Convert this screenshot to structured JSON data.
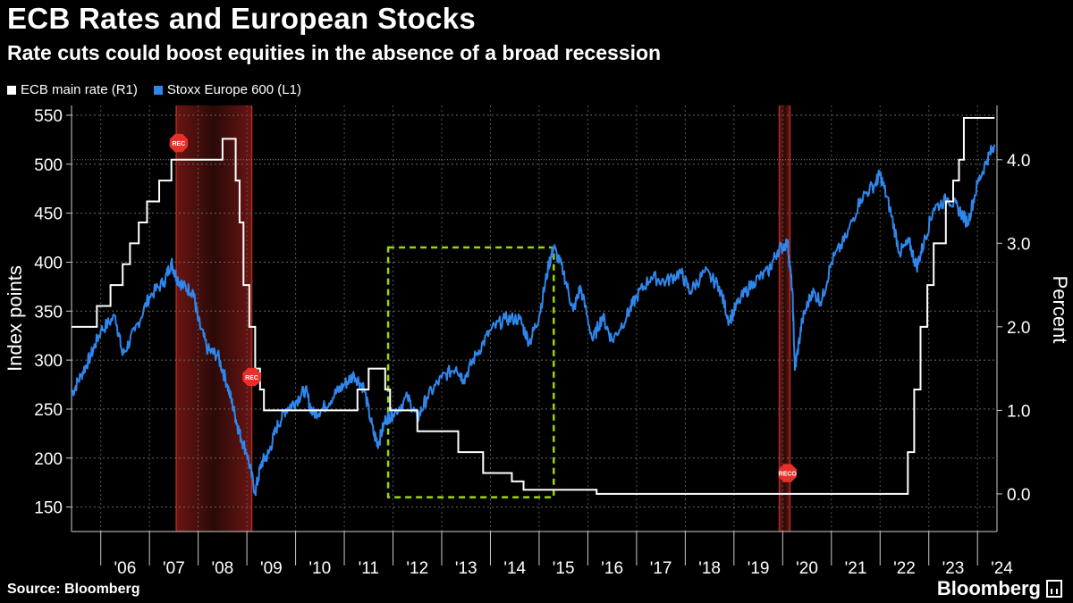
{
  "header": {
    "title": "ECB Rates and European Stocks",
    "subtitle": "Rate cuts could boost equities in the absence of a broad recession"
  },
  "footer": {
    "source": "Source: Bloomberg",
    "brand": "Bloomberg"
  },
  "colors": {
    "background": "#000000",
    "rate": "#ffffff",
    "stoxx": "#2f86ec",
    "recession": "#7a1b17",
    "highlight": "#9dd600",
    "rec_marker": "#e8302b"
  },
  "chart_data": {
    "type": "line",
    "title": "ECB Rates and European Stocks",
    "subtitle": "Rate cuts could boost equities in the absence of a broad recession",
    "legend": [
      {
        "name": "ECB main rate (R1)",
        "color": "#ffffff"
      },
      {
        "name": "Stoxx Europe 600 (L1)",
        "color": "#2f86ec"
      }
    ],
    "legend_position": "top-left",
    "grid": true,
    "x_tick_labels": [
      "'06",
      "'07",
      "'08",
      "'09",
      "'10",
      "'11",
      "'12",
      "'13",
      "'14",
      "'15",
      "'16",
      "'17",
      "'18",
      "'19",
      "'20",
      "'21",
      "'22",
      "'23",
      "'24"
    ],
    "x_range": [
      2005.4,
      2024.4
    ],
    "left_axis": {
      "label": "Index points",
      "ticks": [
        150,
        200,
        250,
        300,
        350,
        400,
        450,
        500,
        550
      ],
      "range": [
        125,
        560
      ]
    },
    "right_axis": {
      "label": "Percent",
      "ticks": [
        "0.0",
        "1.0",
        "2.0",
        "3.0",
        "4.0"
      ],
      "range": [
        -0.45,
        4.65
      ]
    },
    "series": [
      {
        "name": "ECB main rate (R1)",
        "axis": "right",
        "color": "#ffffff",
        "step": true,
        "points": [
          [
            2005.4,
            2.0
          ],
          [
            2005.92,
            2.25
          ],
          [
            2006.2,
            2.5
          ],
          [
            2006.45,
            2.75
          ],
          [
            2006.6,
            3.0
          ],
          [
            2006.78,
            3.25
          ],
          [
            2006.95,
            3.5
          ],
          [
            2007.2,
            3.75
          ],
          [
            2007.45,
            4.0
          ],
          [
            2008.5,
            4.25
          ],
          [
            2008.77,
            3.75
          ],
          [
            2008.85,
            3.25
          ],
          [
            2008.93,
            2.5
          ],
          [
            2009.05,
            2.0
          ],
          [
            2009.17,
            1.5
          ],
          [
            2009.27,
            1.25
          ],
          [
            2009.35,
            1.0
          ],
          [
            2011.27,
            1.25
          ],
          [
            2011.5,
            1.5
          ],
          [
            2011.84,
            1.25
          ],
          [
            2011.94,
            1.0
          ],
          [
            2012.5,
            0.75
          ],
          [
            2013.34,
            0.5
          ],
          [
            2013.85,
            0.25
          ],
          [
            2014.44,
            0.15
          ],
          [
            2014.68,
            0.05
          ],
          [
            2016.18,
            0.0
          ],
          [
            2022.57,
            0.5
          ],
          [
            2022.7,
            1.25
          ],
          [
            2022.83,
            2.0
          ],
          [
            2022.97,
            2.5
          ],
          [
            2023.1,
            3.0
          ],
          [
            2023.35,
            3.5
          ],
          [
            2023.5,
            3.75
          ],
          [
            2023.62,
            4.0
          ],
          [
            2023.72,
            4.5
          ],
          [
            2024.35,
            4.5
          ]
        ]
      },
      {
        "name": "Stoxx Europe 600 (L1)",
        "axis": "left",
        "color": "#2f86ec",
        "points": [
          [
            2005.4,
            265
          ],
          [
            2005.6,
            285
          ],
          [
            2005.8,
            305
          ],
          [
            2006.0,
            330
          ],
          [
            2006.3,
            345
          ],
          [
            2006.45,
            305
          ],
          [
            2006.7,
            330
          ],
          [
            2007.0,
            365
          ],
          [
            2007.3,
            380
          ],
          [
            2007.45,
            400
          ],
          [
            2007.55,
            385
          ],
          [
            2007.7,
            375
          ],
          [
            2007.9,
            370
          ],
          [
            2008.0,
            340
          ],
          [
            2008.2,
            310
          ],
          [
            2008.4,
            305
          ],
          [
            2008.6,
            275
          ],
          [
            2008.75,
            245
          ],
          [
            2008.85,
            225
          ],
          [
            2009.0,
            205
          ],
          [
            2009.17,
            165
          ],
          [
            2009.3,
            195
          ],
          [
            2009.45,
            205
          ],
          [
            2009.6,
            230
          ],
          [
            2009.8,
            250
          ],
          [
            2010.0,
            258
          ],
          [
            2010.2,
            270
          ],
          [
            2010.35,
            245
          ],
          [
            2010.55,
            250
          ],
          [
            2010.8,
            265
          ],
          [
            2011.0,
            275
          ],
          [
            2011.2,
            285
          ],
          [
            2011.4,
            272
          ],
          [
            2011.6,
            225
          ],
          [
            2011.7,
            215
          ],
          [
            2011.85,
            240
          ],
          [
            2012.0,
            245
          ],
          [
            2012.3,
            262
          ],
          [
            2012.5,
            240
          ],
          [
            2012.7,
            262
          ],
          [
            2013.0,
            282
          ],
          [
            2013.3,
            293
          ],
          [
            2013.45,
            280
          ],
          [
            2013.7,
            305
          ],
          [
            2014.0,
            330
          ],
          [
            2014.3,
            342
          ],
          [
            2014.6,
            342
          ],
          [
            2014.8,
            318
          ],
          [
            2015.0,
            345
          ],
          [
            2015.2,
            398
          ],
          [
            2015.3,
            415
          ],
          [
            2015.5,
            390
          ],
          [
            2015.7,
            350
          ],
          [
            2015.85,
            375
          ],
          [
            2016.1,
            320
          ],
          [
            2016.3,
            345
          ],
          [
            2016.5,
            320
          ],
          [
            2016.8,
            345
          ],
          [
            2017.0,
            365
          ],
          [
            2017.3,
            385
          ],
          [
            2017.6,
            380
          ],
          [
            2017.9,
            390
          ],
          [
            2018.1,
            370
          ],
          [
            2018.4,
            390
          ],
          [
            2018.7,
            375
          ],
          [
            2018.9,
            340
          ],
          [
            2019.1,
            360
          ],
          [
            2019.4,
            380
          ],
          [
            2019.7,
            390
          ],
          [
            2019.9,
            412
          ],
          [
            2020.1,
            420
          ],
          [
            2020.2,
            370
          ],
          [
            2020.25,
            290
          ],
          [
            2020.4,
            340
          ],
          [
            2020.6,
            370
          ],
          [
            2020.8,
            360
          ],
          [
            2021.0,
            400
          ],
          [
            2021.3,
            425
          ],
          [
            2021.6,
            465
          ],
          [
            2021.9,
            480
          ],
          [
            2022.0,
            490
          ],
          [
            2022.2,
            455
          ],
          [
            2022.4,
            410
          ],
          [
            2022.6,
            420
          ],
          [
            2022.75,
            395
          ],
          [
            2022.9,
            420
          ],
          [
            2023.1,
            455
          ],
          [
            2023.4,
            465
          ],
          [
            2023.6,
            455
          ],
          [
            2023.8,
            440
          ],
          [
            2024.0,
            480
          ],
          [
            2024.2,
            505
          ],
          [
            2024.35,
            520
          ]
        ]
      }
    ],
    "recession_shading": [
      [
        2007.55,
        2009.1
      ],
      [
        2019.93,
        2020.15
      ]
    ],
    "recession_labels": [
      "REC",
      "REC",
      "RECO"
    ],
    "highlight_box": {
      "x_range": [
        2011.9,
        2015.3
      ],
      "y_range": [
        160,
        415
      ]
    }
  }
}
